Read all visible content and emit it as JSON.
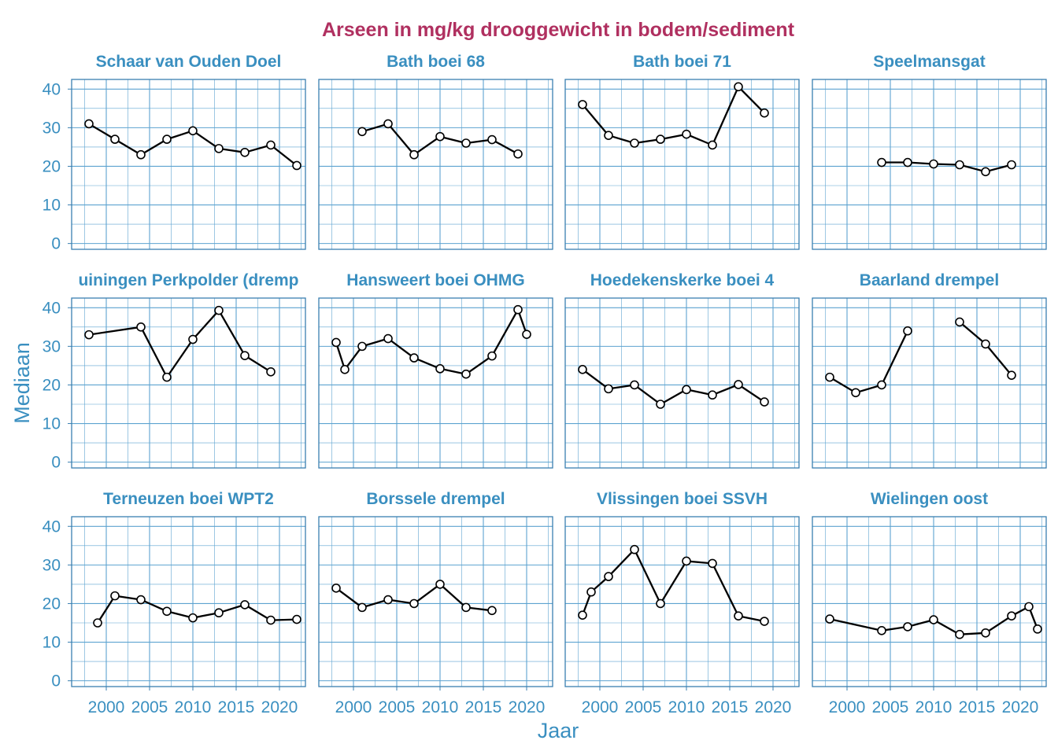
{
  "title": "Arseen in mg/kg drooggewicht in bodem/sediment",
  "colors": {
    "title": "#B03060",
    "accent": "#3A8FC0",
    "grid": "#5DA3D0",
    "border": "#3A7FB0",
    "line": "#000000",
    "marker_fill": "#ffffff"
  },
  "chart_data": {
    "type": "line",
    "layout": "facet grid 3 rows x 4 columns",
    "xlabel": "Jaar",
    "ylabel": "Mediaan",
    "xlim": [
      1996,
      2023
    ],
    "ylim": [
      -1.5,
      42.5
    ],
    "x_ticks": [
      2000,
      2005,
      2010,
      2015,
      2020
    ],
    "y_ticks": [
      0,
      10,
      20,
      30,
      40
    ],
    "grid": true,
    "panels": [
      {
        "name": "Schaar van Ouden Doel",
        "points": [
          [
            1998,
            31
          ],
          [
            2001,
            27
          ],
          [
            2004,
            23
          ],
          [
            2007,
            27
          ],
          [
            2010,
            29.2
          ],
          [
            2013,
            24.6
          ],
          [
            2016,
            23.6
          ],
          [
            2019,
            25.5
          ],
          [
            2022,
            20.2
          ]
        ]
      },
      {
        "name": "Bath boei 68",
        "points": [
          [
            2001,
            29
          ],
          [
            2004,
            31
          ],
          [
            2007,
            23
          ],
          [
            2010,
            27.7
          ],
          [
            2013,
            26
          ],
          [
            2016,
            26.9
          ],
          [
            2019,
            23.2
          ]
        ]
      },
      {
        "name": "Bath boei 71",
        "points": [
          [
            1998,
            36
          ],
          [
            2001,
            28
          ],
          [
            2004,
            26
          ],
          [
            2007,
            27
          ],
          [
            2010,
            28.3
          ],
          [
            2013,
            25.5
          ],
          [
            2016,
            40.6
          ],
          [
            2019,
            33.8
          ]
        ]
      },
      {
        "name": "Speelmansgat",
        "points": [
          [
            2004,
            21
          ],
          [
            2007,
            21
          ],
          [
            2010,
            20.6
          ],
          [
            2013,
            20.4
          ],
          [
            2016,
            18.6
          ],
          [
            2019,
            20.4
          ]
        ]
      },
      {
        "name": "uiningen Perkpolder (dremp",
        "points": [
          [
            1998,
            33
          ],
          [
            2004,
            35
          ],
          [
            2007,
            22
          ],
          [
            2010,
            31.8
          ],
          [
            2013,
            39.3
          ],
          [
            2016,
            27.6
          ],
          [
            2019,
            23.4
          ]
        ]
      },
      {
        "name": "Hansweert boei OHMG",
        "points": [
          [
            1998,
            31
          ],
          [
            1999,
            24
          ],
          [
            2001,
            30
          ],
          [
            2004,
            32
          ],
          [
            2007,
            27
          ],
          [
            2010,
            24.2
          ],
          [
            2013,
            22.8
          ],
          [
            2016,
            27.5
          ],
          [
            2019,
            39.5
          ],
          [
            2020,
            33.1
          ]
        ]
      },
      {
        "name": "Hoedekenskerke boei 4",
        "points": [
          [
            1998,
            24
          ],
          [
            2001,
            19
          ],
          [
            2004,
            20
          ],
          [
            2007,
            15
          ],
          [
            2010,
            18.8
          ],
          [
            2013,
            17.4
          ],
          [
            2016,
            20.1
          ],
          [
            2019,
            15.6
          ]
        ]
      },
      {
        "name": "Baarland drempel",
        "segments": [
          [
            [
              1998,
              22
            ],
            [
              2001,
              18
            ],
            [
              2004,
              20
            ],
            [
              2007,
              34
            ]
          ],
          [
            [
              2013,
              36.3
            ],
            [
              2016,
              30.6
            ],
            [
              2019,
              22.5
            ]
          ]
        ]
      },
      {
        "name": "Terneuzen boei WPT2",
        "points": [
          [
            1999,
            15
          ],
          [
            2001,
            22
          ],
          [
            2004,
            21
          ],
          [
            2007,
            18
          ],
          [
            2010,
            16.3
          ],
          [
            2013,
            17.6
          ],
          [
            2016,
            19.7
          ],
          [
            2019,
            15.7
          ],
          [
            2022,
            15.9
          ]
        ]
      },
      {
        "name": "Borssele drempel",
        "points": [
          [
            1998,
            24
          ],
          [
            2001,
            19
          ],
          [
            2004,
            21
          ],
          [
            2007,
            20
          ],
          [
            2010,
            25
          ],
          [
            2013,
            19
          ],
          [
            2016,
            18.2
          ]
        ]
      },
      {
        "name": "Vlissingen boei SSVH",
        "points": [
          [
            1998,
            17
          ],
          [
            1999,
            23
          ],
          [
            2001,
            27
          ],
          [
            2004,
            34
          ],
          [
            2007,
            20
          ],
          [
            2010,
            31
          ],
          [
            2013,
            30.4
          ],
          [
            2016,
            16.8
          ],
          [
            2019,
            15.4
          ]
        ]
      },
      {
        "name": "Wielingen oost",
        "points": [
          [
            1998,
            16
          ],
          [
            2004,
            13
          ],
          [
            2007,
            14
          ],
          [
            2010,
            15.8
          ],
          [
            2013,
            12
          ],
          [
            2016,
            12.4
          ],
          [
            2019,
            16.8
          ],
          [
            2021,
            19.2
          ],
          [
            2022,
            13.4
          ]
        ]
      }
    ]
  }
}
